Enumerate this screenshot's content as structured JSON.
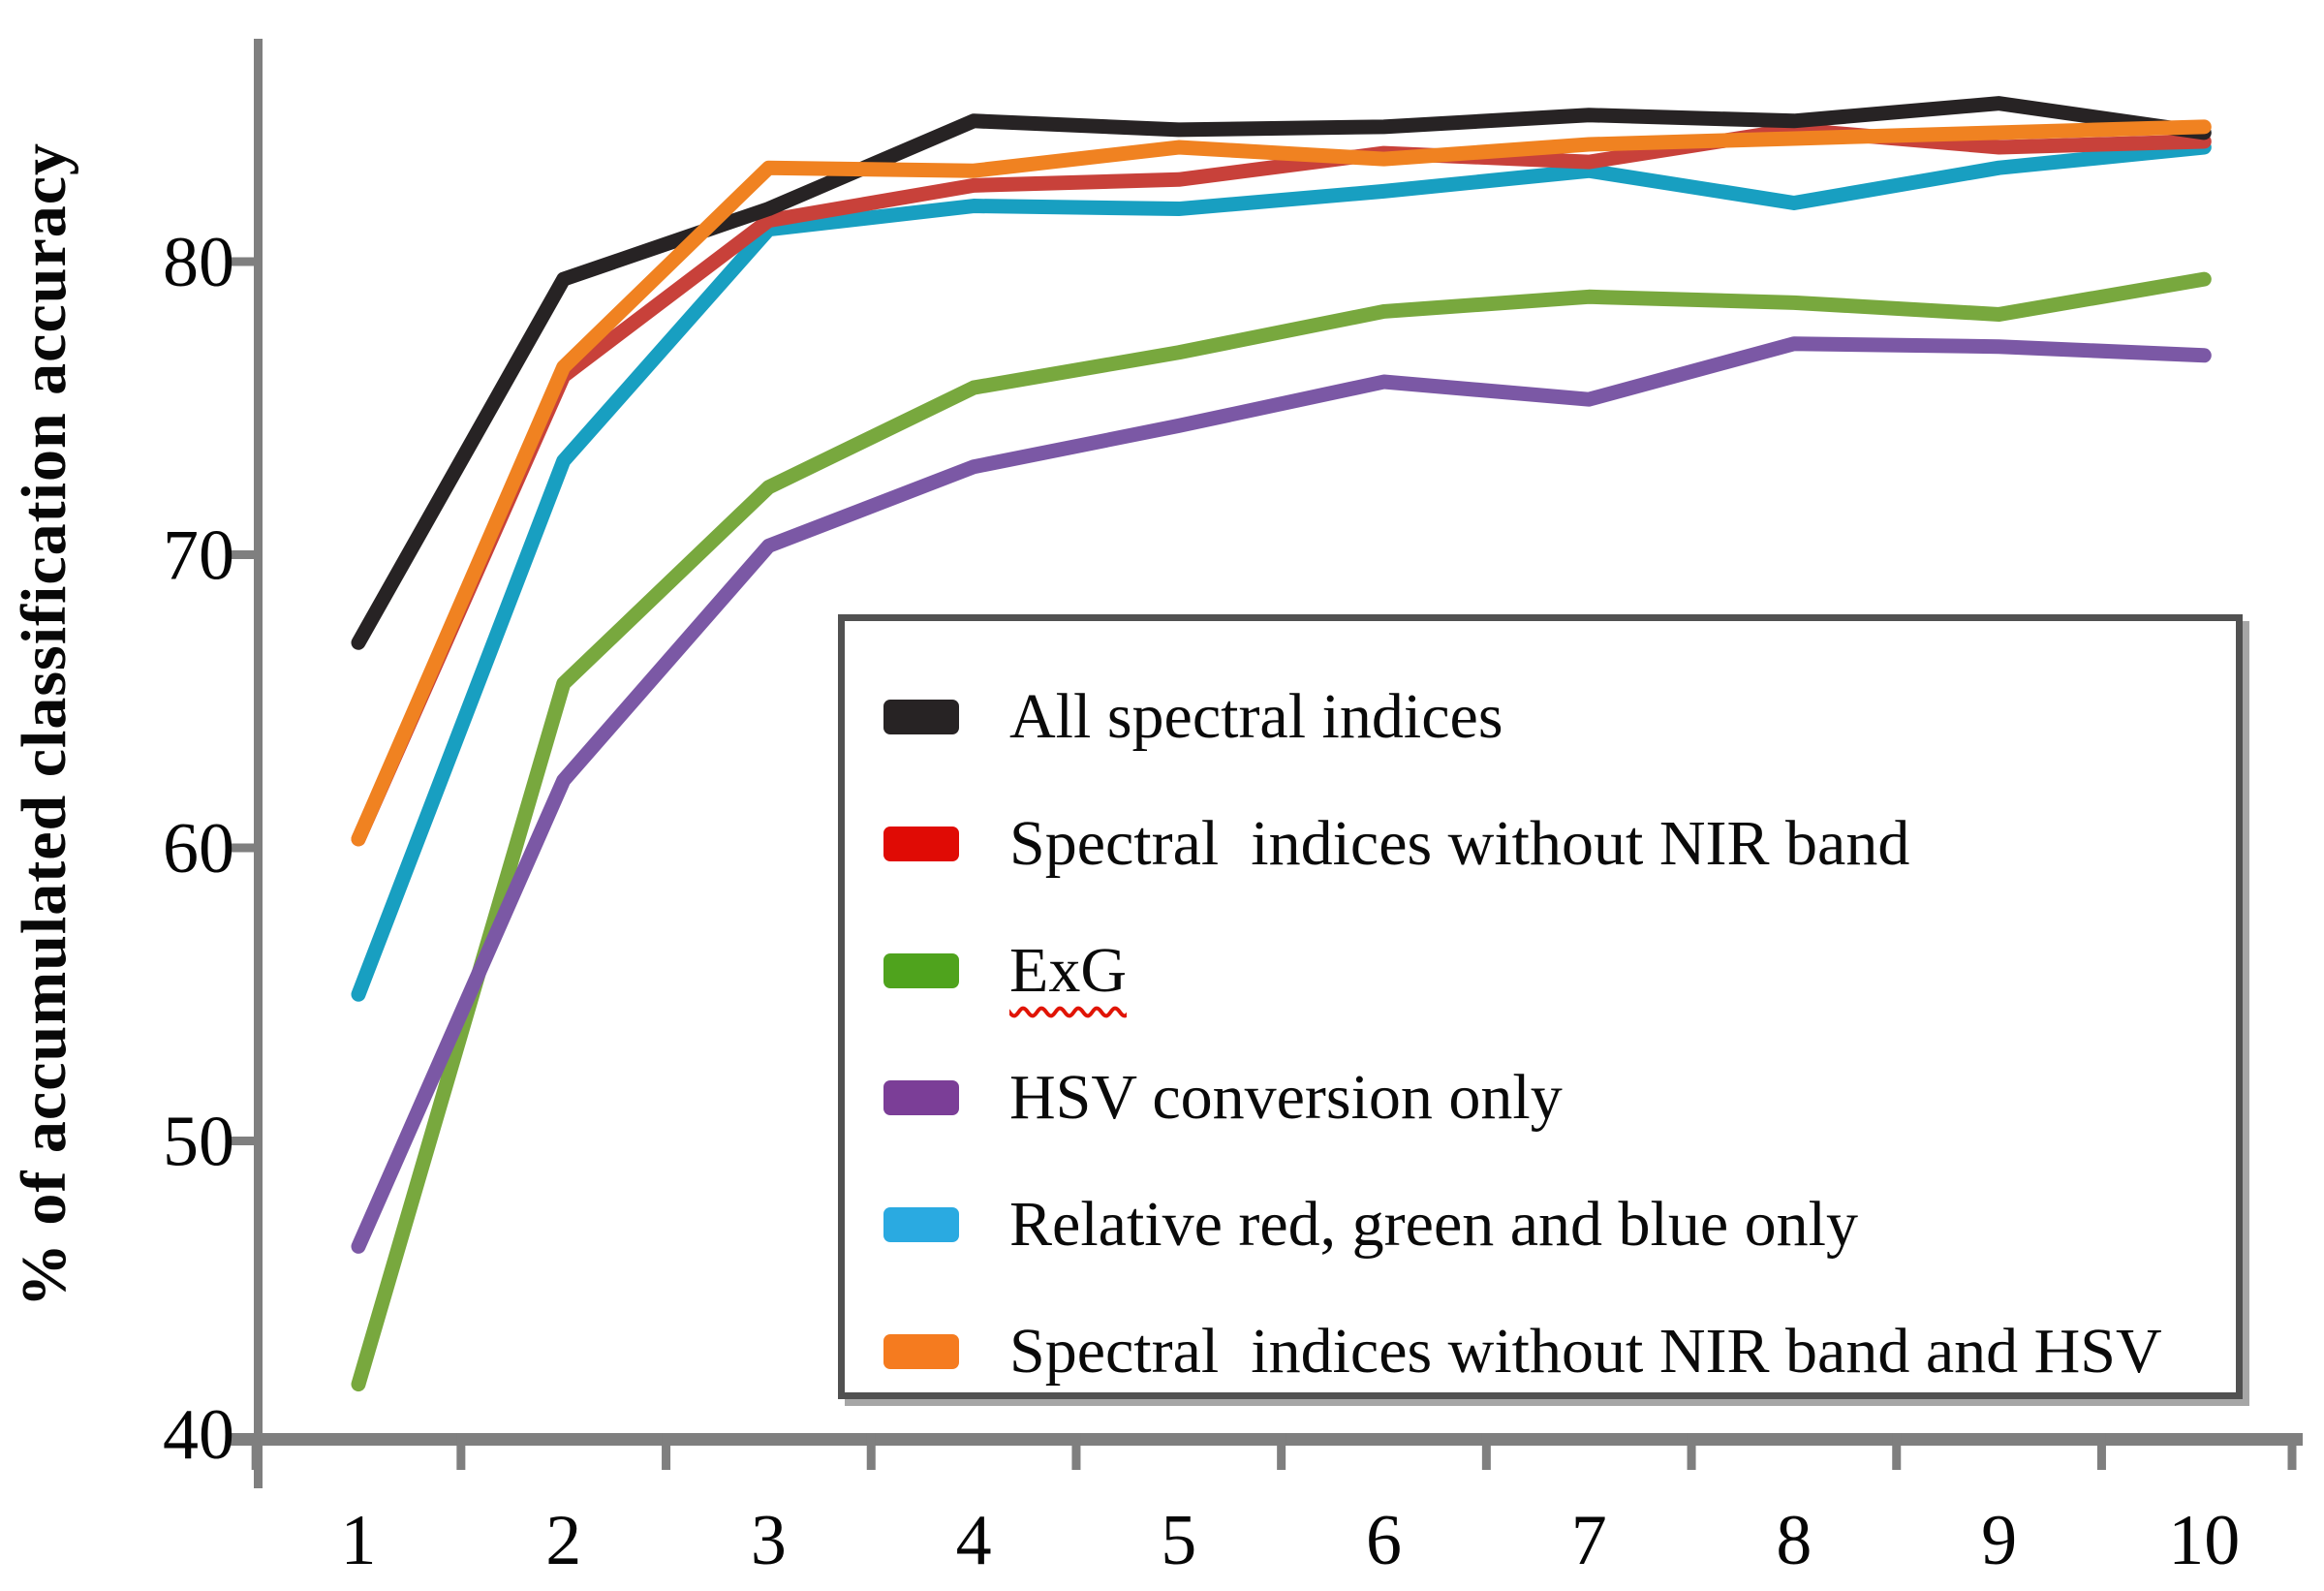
{
  "chart_data": {
    "type": "line",
    "title": "",
    "xlabel": "",
    "ylabel": "% of accumulated classification accuracy",
    "x": [
      1,
      2,
      3,
      4,
      5,
      6,
      7,
      8,
      9,
      10
    ],
    "x_tick_labels": [
      "1",
      "2",
      "3",
      "4",
      "5",
      "6",
      "7",
      "8",
      "9",
      "10"
    ],
    "y_ticks": [
      40,
      50,
      60,
      70,
      80
    ],
    "ylim": [
      40,
      87.5
    ],
    "xlim": [
      0.5,
      10.5
    ],
    "grid": false,
    "axis_color": "#7f7f7f",
    "legend_position": "inside-right-box",
    "series": [
      {
        "name": "All spectral indices",
        "color": "#272324",
        "legend_color": "#272324",
        "values": [
          67.0,
          79.4,
          81.8,
          84.8,
          84.5,
          84.6,
          85.0,
          84.8,
          85.4,
          84.4
        ]
      },
      {
        "name": "Spectral  indices without NIR band",
        "color": "#c8413a",
        "legend_color": "#e00b05",
        "values": [
          60.3,
          76.1,
          81.4,
          82.6,
          82.8,
          83.7,
          83.4,
          84.5,
          83.9,
          84.1
        ]
      },
      {
        "name": "ExG",
        "color": "#78a83e",
        "legend_color": "#4fa31d",
        "underline_wavy": true,
        "values": [
          41.7,
          65.6,
          72.3,
          75.7,
          76.9,
          78.3,
          78.8,
          78.6,
          78.2,
          79.4
        ]
      },
      {
        "name": "HSV conversion only",
        "color": "#7b58a5",
        "legend_color": "#7b3e97",
        "values": [
          46.4,
          62.3,
          70.3,
          73.0,
          74.4,
          75.9,
          75.3,
          77.2,
          77.1,
          76.8
        ]
      },
      {
        "name": "Relative red, green and blue only",
        "color": "#189fc1",
        "legend_color": "#2aaae1",
        "values": [
          55.0,
          73.2,
          81.1,
          81.9,
          81.8,
          82.4,
          83.1,
          82.0,
          83.2,
          83.9
        ]
      },
      {
        "name": "Spectral  indices without NIR band and HSV",
        "color": "#f08221",
        "legend_color": "#f57b1f",
        "values": [
          60.3,
          76.4,
          83.2,
          83.1,
          83.9,
          83.5,
          84.0,
          84.2,
          84.4,
          84.6
        ]
      }
    ],
    "draw_order": [
      2,
      3,
      4,
      1,
      0,
      5
    ]
  }
}
